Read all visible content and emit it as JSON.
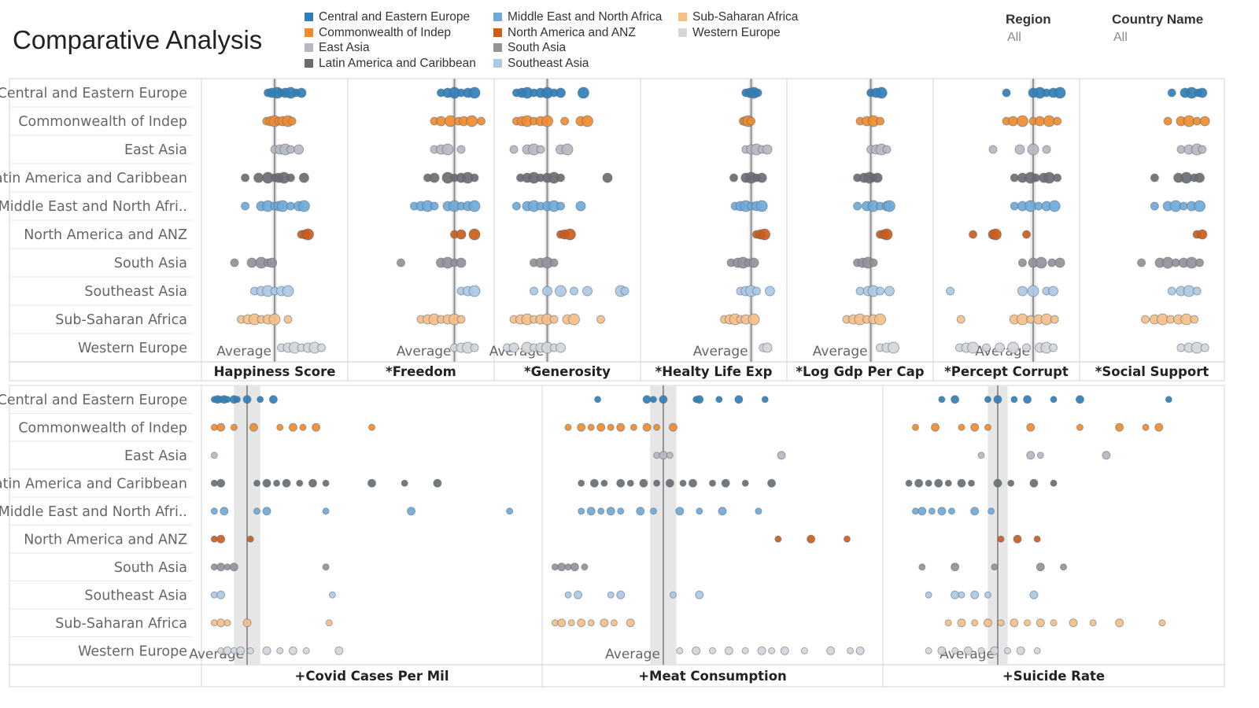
{
  "title": "Comparative Analysis",
  "filters": [
    {
      "label": "Region",
      "value": "All"
    },
    {
      "label": "Country Name",
      "value": "All"
    }
  ],
  "colors": {
    "Central and Eastern Europe": "#2f7fb8",
    "Commonwealth of Indep": "#f08b2c",
    "East Asia": "#b7b9c0",
    "Latin America and Caribbean": "#6a6c70",
    "Middle East and North Africa": "#6ea9d9",
    "North America and ANZ": "#cc5c1a",
    "South Asia": "#929397",
    "Southeast Asia": "#aac9e6",
    "Sub-Saharan Africa": "#f5bf87",
    "Western Europe": "#d5d6d9"
  },
  "chart_data": [
    {
      "type": "scatter",
      "title": "",
      "regions": [
        "Central and Eastern Europe",
        "Commonwealth of Indep",
        "East Asia",
        "Latin America and Caribbean",
        "Middle East and North Africa",
        "North America and ANZ",
        "South Asia",
        "Southeast Asia",
        "Sub-Saharan Africa",
        "Western Europe"
      ],
      "row_labels": [
        "Central and Eastern Europe",
        "Commonwealth of Indep",
        "East Asia",
        "Latin America and Caribbean",
        "Middle East and North Afri..",
        "North America and ANZ",
        "South Asia",
        "Southeast Asia",
        "Sub-Saharan Africa",
        "Western Europe"
      ],
      "average_label": "Average",
      "measures": [
        {
          "name": "Happiness Score",
          "average": 0.5,
          "band": 0.01,
          "series": [
            [
              0.45,
              0.48,
              0.52,
              0.55,
              0.58,
              0.62,
              0.66,
              0.7
            ],
            [
              0.44,
              0.47,
              0.5,
              0.53,
              0.56,
              0.6,
              0.63
            ],
            [
              0.5,
              0.54,
              0.58,
              0.62,
              0.68
            ],
            [
              0.28,
              0.38,
              0.45,
              0.5,
              0.53,
              0.57,
              0.62,
              0.72
            ],
            [
              0.28,
              0.4,
              0.45,
              0.5,
              0.53,
              0.56,
              0.62,
              0.68,
              0.72
            ],
            [
              0.7,
              0.73,
              0.75
            ],
            [
              0.2,
              0.33,
              0.4,
              0.45,
              0.48
            ],
            [
              0.35,
              0.4,
              0.45,
              0.5,
              0.55,
              0.6
            ],
            [
              0.25,
              0.3,
              0.35,
              0.4,
              0.45,
              0.5,
              0.6
            ],
            [
              0.55,
              0.6,
              0.65,
              0.7,
              0.75,
              0.8,
              0.85
            ]
          ]
        },
        {
          "name": "*Freedom",
          "average": 0.75,
          "band": 0.01,
          "series": [
            [
              0.65,
              0.7,
              0.75,
              0.8,
              0.85,
              0.9
            ],
            [
              0.6,
              0.65,
              0.72,
              0.78,
              0.82,
              0.88,
              0.95
            ],
            [
              0.6,
              0.65,
              0.7,
              0.8
            ],
            [
              0.55,
              0.6,
              0.7,
              0.75,
              0.8,
              0.85,
              0.9
            ],
            [
              0.45,
              0.5,
              0.55,
              0.6,
              0.7,
              0.75,
              0.8,
              0.85,
              0.9
            ],
            [
              0.75,
              0.8,
              0.9
            ],
            [
              0.35,
              0.65,
              0.7,
              0.75,
              0.8
            ],
            [
              0.8,
              0.85,
              0.9
            ],
            [
              0.5,
              0.55,
              0.6,
              0.65,
              0.7,
              0.75,
              0.8
            ],
            [
              0.75,
              0.8,
              0.85,
              0.9
            ]
          ]
        },
        {
          "name": "*Generosity",
          "average": 0.35,
          "band": 0.01,
          "series": [
            [
              0.12,
              0.16,
              0.2,
              0.25,
              0.3,
              0.35,
              0.4,
              0.45,
              0.62
            ],
            [
              0.12,
              0.16,
              0.2,
              0.25,
              0.3,
              0.35,
              0.48,
              0.6,
              0.65
            ],
            [
              0.1,
              0.2,
              0.25,
              0.3,
              0.45,
              0.5
            ],
            [
              0.15,
              0.2,
              0.25,
              0.3,
              0.35,
              0.4,
              0.45,
              0.8
            ],
            [
              0.12,
              0.2,
              0.25,
              0.3,
              0.35,
              0.4,
              0.45,
              0.6
            ],
            [
              0.45,
              0.48,
              0.52
            ],
            [
              0.25,
              0.3,
              0.35,
              0.4
            ],
            [
              0.25,
              0.35,
              0.45,
              0.55,
              0.65,
              0.9,
              0.93
            ],
            [
              0.1,
              0.15,
              0.2,
              0.25,
              0.3,
              0.35,
              0.4,
              0.5,
              0.55,
              0.75
            ],
            [
              0.05,
              0.1,
              0.2,
              0.25,
              0.3,
              0.35,
              0.4,
              0.45
            ]
          ]
        },
        {
          "name": "*Healty Life Exp",
          "average": 0.78,
          "band": 0.01,
          "series": [
            [
              0.74,
              0.77,
              0.8,
              0.83
            ],
            [
              0.72,
              0.74,
              0.76,
              0.78
            ],
            [
              0.74,
              0.78,
              0.82,
              0.86,
              0.9
            ],
            [
              0.65,
              0.74,
              0.78,
              0.82,
              0.86
            ],
            [
              0.66,
              0.7,
              0.74,
              0.78,
              0.82,
              0.86
            ],
            [
              0.82,
              0.85,
              0.88
            ],
            [
              0.63,
              0.68,
              0.72,
              0.76,
              0.8
            ],
            [
              0.7,
              0.74,
              0.78,
              0.82,
              0.92
            ],
            [
              0.58,
              0.62,
              0.66,
              0.7,
              0.74,
              0.8
            ],
            [
              0.87,
              0.9
            ]
          ]
        },
        {
          "name": "*Log Gdp Per Cap",
          "average": 0.58,
          "band": 0.01,
          "series": [
            [
              0.58,
              0.62,
              0.66
            ],
            [
              0.5,
              0.55,
              0.6,
              0.65
            ],
            [
              0.58,
              0.62,
              0.66,
              0.7
            ],
            [
              0.48,
              0.53,
              0.57,
              0.6,
              0.63
            ],
            [
              0.48,
              0.55,
              0.6,
              0.65,
              0.7,
              0.72
            ],
            [
              0.65,
              0.68,
              0.7
            ],
            [
              0.48,
              0.52,
              0.56,
              0.6
            ],
            [
              0.5,
              0.56,
              0.6,
              0.65,
              0.72
            ],
            [
              0.4,
              0.45,
              0.5,
              0.55,
              0.6,
              0.65
            ],
            [
              0.65,
              0.7,
              0.75
            ]
          ]
        },
        {
          "name": "*Percept Corrupt",
          "average": 0.7,
          "band": 0.02,
          "series": [
            [
              0.5,
              0.7,
              0.75,
              0.8,
              0.85,
              0.9
            ],
            [
              0.5,
              0.55,
              0.62,
              0.7,
              0.75,
              0.82,
              0.88
            ],
            [
              0.4,
              0.6,
              0.7,
              0.8
            ],
            [
              0.56,
              0.62,
              0.68,
              0.72,
              0.78,
              0.82,
              0.88
            ],
            [
              0.56,
              0.62,
              0.68,
              0.74,
              0.8,
              0.86
            ],
            [
              0.25,
              0.4,
              0.42,
              0.65
            ],
            [
              0.62,
              0.7,
              0.76,
              0.84,
              0.9
            ],
            [
              0.08,
              0.62,
              0.7,
              0.8,
              0.85
            ],
            [
              0.16,
              0.56,
              0.62,
              0.68,
              0.74,
              0.8,
              0.86
            ],
            [
              0.15,
              0.2,
              0.25,
              0.35,
              0.45,
              0.55,
              0.65,
              0.75,
              0.8,
              0.85
            ]
          ]
        },
        {
          "name": "*Social Support",
          "average": null,
          "band": null,
          "series": [
            [
              0.65,
              0.75,
              0.8,
              0.85,
              0.88
            ],
            [
              0.62,
              0.72,
              0.78,
              0.84,
              0.9
            ],
            [
              0.72,
              0.78,
              0.84,
              0.88
            ],
            [
              0.52,
              0.7,
              0.76,
              0.82,
              0.86
            ],
            [
              0.52,
              0.62,
              0.68,
              0.74,
              0.8,
              0.86
            ],
            [
              0.84,
              0.88
            ],
            [
              0.42,
              0.56,
              0.62,
              0.68,
              0.74,
              0.8,
              0.86
            ],
            [
              0.65,
              0.72,
              0.78,
              0.84
            ],
            [
              0.45,
              0.52,
              0.58,
              0.64,
              0.7,
              0.76,
              0.82
            ],
            [
              0.72,
              0.78,
              0.84,
              0.9
            ]
          ]
        }
      ]
    },
    {
      "type": "scatter",
      "title": "",
      "regions": [
        "Central and Eastern Europe",
        "Commonwealth of Indep",
        "East Asia",
        "Latin America and Caribbean",
        "Middle East and North Africa",
        "North America and ANZ",
        "South Asia",
        "Southeast Asia",
        "Sub-Saharan Africa",
        "Western Europe"
      ],
      "row_labels": [
        "Central and Eastern Europe",
        "Commonwealth of Indep",
        "East Asia",
        "Latin America and Caribbean",
        "Middle East and North Afri..",
        "North America and ANZ",
        "South Asia",
        "Southeast Asia",
        "Sub-Saharan Africa",
        "Western Europe"
      ],
      "average_label": "Average",
      "measures": [
        {
          "name": "+Covid Cases Per Mil",
          "average": 0.12,
          "band": 0.04,
          "series": [
            [
              0.02,
              0.03,
              0.04,
              0.05,
              0.06,
              0.08,
              0.09,
              0.12,
              0.16,
              0.2
            ],
            [
              0.02,
              0.04,
              0.08,
              0.14,
              0.22,
              0.26,
              0.29,
              0.33,
              0.5
            ],
            [
              0.02
            ],
            [
              0.02,
              0.04,
              0.15,
              0.18,
              0.21,
              0.24,
              0.28,
              0.32,
              0.36,
              0.5,
              0.6,
              0.7
            ],
            [
              0.02,
              0.05,
              0.15,
              0.18,
              0.36,
              0.62,
              0.92
            ],
            [
              0.02,
              0.04,
              0.13
            ],
            [
              0.02,
              0.04,
              0.06,
              0.08,
              0.36
            ],
            [
              0.02,
              0.04,
              0.38
            ],
            [
              0.02,
              0.04,
              0.06,
              0.12,
              0.37
            ],
            [
              0.04,
              0.06,
              0.08,
              0.1,
              0.13,
              0.18,
              0.22,
              0.26,
              0.3,
              0.4
            ]
          ]
        },
        {
          "name": "+Meat Consumption",
          "average": 0.35,
          "band": 0.04,
          "series": [
            [
              0.15,
              0.3,
              0.32,
              0.35,
              0.45,
              0.46,
              0.52,
              0.58,
              0.66
            ],
            [
              0.06,
              0.1,
              0.13,
              0.16,
              0.19,
              0.22,
              0.26,
              0.3,
              0.33,
              0.38
            ],
            [
              0.33,
              0.35,
              0.37,
              0.71
            ],
            [
              0.1,
              0.14,
              0.17,
              0.22,
              0.25,
              0.29,
              0.33,
              0.37,
              0.41,
              0.44,
              0.5,
              0.54,
              0.6,
              0.68
            ],
            [
              0.1,
              0.13,
              0.16,
              0.19,
              0.22,
              0.28,
              0.32,
              0.4,
              0.46,
              0.53,
              0.64
            ],
            [
              0.7,
              0.8,
              0.91
            ],
            [
              0.02,
              0.04,
              0.06,
              0.08,
              0.11
            ],
            [
              0.06,
              0.09,
              0.19,
              0.22,
              0.38,
              0.46
            ],
            [
              0.02,
              0.04,
              0.07,
              0.1,
              0.13,
              0.17,
              0.2,
              0.25
            ],
            [
              0.4,
              0.45,
              0.5,
              0.55,
              0.6,
              0.65,
              0.68,
              0.72,
              0.78,
              0.86,
              0.92,
              0.95
            ]
          ]
        },
        {
          "name": "+Suicide Rate",
          "average": 0.33,
          "band": 0.03,
          "series": [
            [
              0.16,
              0.2,
              0.3,
              0.33,
              0.38,
              0.42,
              0.5,
              0.58,
              0.85
            ],
            [
              0.08,
              0.14,
              0.22,
              0.26,
              0.3,
              0.43,
              0.58,
              0.7,
              0.78,
              0.82
            ],
            [
              0.28,
              0.43,
              0.46,
              0.66
            ],
            [
              0.06,
              0.09,
              0.12,
              0.15,
              0.18,
              0.22,
              0.25,
              0.33,
              0.37,
              0.44,
              0.5
            ],
            [
              0.08,
              0.1,
              0.13,
              0.16,
              0.19,
              0.26,
              0.31
            ],
            [
              0.34,
              0.39,
              0.45
            ],
            [
              0.1,
              0.2,
              0.32,
              0.46,
              0.53
            ],
            [
              0.12,
              0.2,
              0.22,
              0.26,
              0.3,
              0.44
            ],
            [
              0.18,
              0.22,
              0.26,
              0.3,
              0.34,
              0.38,
              0.42,
              0.46,
              0.5,
              0.56,
              0.62,
              0.7,
              0.83
            ],
            [
              0.12,
              0.16,
              0.2,
              0.24,
              0.28,
              0.32,
              0.36,
              0.4,
              0.45
            ]
          ]
        }
      ]
    }
  ]
}
